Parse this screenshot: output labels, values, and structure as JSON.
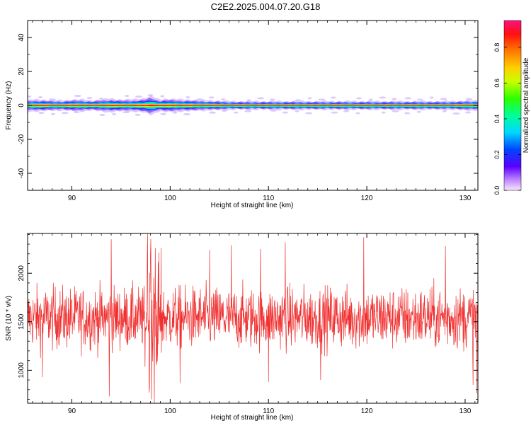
{
  "figure": {
    "title": "C2E2.2025.004.07.20.G18"
  },
  "chart_data": [
    {
      "type": "heatmap",
      "xlabel": "Height of straight line (km)",
      "ylabel": "Frequency (Hz)",
      "xlim": [
        85.5,
        131.3
      ],
      "ylim": [
        -50,
        50
      ],
      "xticks": [
        90,
        100,
        110,
        120,
        130
      ],
      "yticks": [
        -40,
        -20,
        0,
        20,
        40
      ],
      "colorbar": {
        "label": "Normalized spectral amplitude",
        "range": [
          0,
          0.95
        ],
        "ticks": [
          "0.0",
          "0.2",
          "0.4",
          "0.6",
          "0.8"
        ],
        "tick_values": [
          0.0,
          0.2,
          0.4,
          0.6,
          0.8
        ]
      },
      "band": {
        "center_hz": 0,
        "x": [
          85.5,
          86,
          87,
          88,
          89,
          90,
          91,
          92,
          93,
          94,
          95,
          96,
          97,
          97.5,
          98,
          98.3,
          98.6,
          99,
          99.5,
          100,
          101,
          102,
          103,
          104,
          106,
          108,
          110,
          113,
          116,
          120,
          124,
          128,
          131.3
        ],
        "half_width_hz": [
          3,
          3.5,
          3.5,
          3,
          3,
          3.5,
          3.5,
          3,
          3.5,
          4,
          3.5,
          3.5,
          4,
          4.5,
          5.5,
          5,
          4,
          3.5,
          4,
          4,
          3.5,
          3.5,
          3,
          3,
          2.5,
          2.5,
          2.5,
          2.5,
          2.5,
          2.5,
          2.5,
          2.5,
          3
        ]
      }
    },
    {
      "type": "line",
      "xlabel": "Height of straight line (km)",
      "ylabel": "SNR (10 * v/v)",
      "xlim": [
        85.5,
        131.3
      ],
      "ylim": [
        660,
        2410
      ],
      "xticks": [
        90,
        100,
        110,
        120,
        130
      ],
      "yticks": [
        1000,
        1500,
        2000
      ],
      "color": "#f03030",
      "mean": 1540,
      "spread": 160,
      "peaks": [
        {
          "x": 94.0,
          "y": 2350
        },
        {
          "x": 97.7,
          "y": 2420
        },
        {
          "x": 98.0,
          "y": 2200
        },
        {
          "x": 98.5,
          "y": 2260
        },
        {
          "x": 104.0,
          "y": 2240
        },
        {
          "x": 106.2,
          "y": 2290
        },
        {
          "x": 109.2,
          "y": 2250
        },
        {
          "x": 111.7,
          "y": 2320
        },
        {
          "x": 119.7,
          "y": 2370
        },
        {
          "x": 128.0,
          "y": 2280
        }
      ],
      "troughs": [
        {
          "x": 87.0,
          "y": 930
        },
        {
          "x": 93.8,
          "y": 730
        },
        {
          "x": 97.9,
          "y": 820
        },
        {
          "x": 98.1,
          "y": 700
        },
        {
          "x": 98.4,
          "y": 660
        },
        {
          "x": 101.0,
          "y": 870
        },
        {
          "x": 110.0,
          "y": 880
        },
        {
          "x": 115.3,
          "y": 900
        },
        {
          "x": 130.8,
          "y": 850
        },
        {
          "x": 131.2,
          "y": 760
        }
      ]
    }
  ]
}
